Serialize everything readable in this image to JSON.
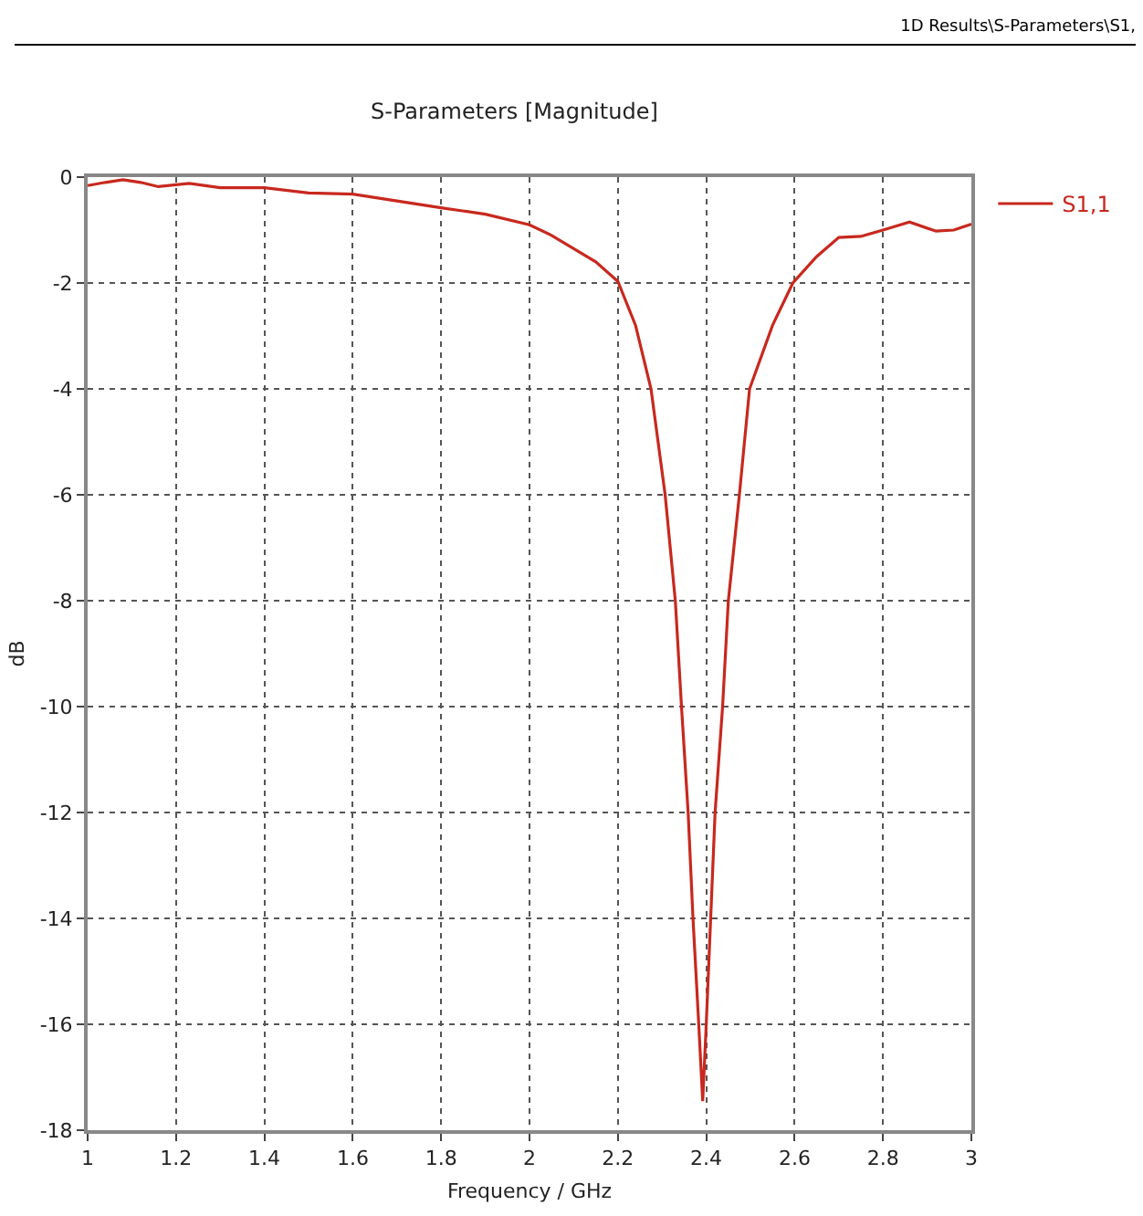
{
  "chart_data": {
    "type": "line",
    "title": "S-Parameters [Magnitude]",
    "xlabel": "Frequency / GHz",
    "ylabel": "dB",
    "annotations": [
      "1D Results\\S-Parameters\\S1,"
    ],
    "x": [
      1.0,
      1.04,
      1.08,
      1.12,
      1.16,
      1.23,
      1.3,
      1.4,
      1.5,
      1.6,
      1.7,
      1.8,
      1.9,
      2.0,
      2.05,
      2.1,
      2.15,
      2.2,
      2.24,
      2.275,
      2.307,
      2.33,
      2.344,
      2.359,
      2.37,
      2.383,
      2.392,
      2.4,
      2.41,
      2.42,
      2.437,
      2.45,
      2.475,
      2.498,
      2.55,
      2.596,
      2.65,
      2.7,
      2.75,
      2.8,
      2.86,
      2.92,
      2.96,
      3.0
    ],
    "series": [
      {
        "name": "S1,1",
        "color": "#c8281e",
        "values": [
          -0.16,
          -0.1,
          -0.05,
          -0.1,
          -0.18,
          -0.12,
          -0.2,
          -0.2,
          -0.3,
          -0.32,
          -0.45,
          -0.58,
          -0.7,
          -0.9,
          -1.1,
          -1.35,
          -1.6,
          -1.97,
          -2.8,
          -4,
          -6,
          -8,
          -10,
          -12,
          -14,
          -16,
          -17.45,
          -16,
          -14,
          -12,
          -10,
          -8,
          -6,
          -4,
          -2.8,
          -2,
          -1.5,
          -1.14,
          -1.12,
          -1.0,
          -0.85,
          -1.02,
          -1.0,
          -0.89
        ]
      }
    ],
    "xlim": [
      1,
      3
    ],
    "xticks": [
      1,
      1.2,
      1.4,
      1.6,
      1.8,
      2,
      2.2,
      2.4,
      2.6,
      2.8,
      3
    ],
    "ylim": [
      -18,
      0
    ],
    "yticks": [
      -18,
      -16,
      -14,
      -12,
      -10,
      -8,
      -6,
      -4,
      -2,
      0
    ],
    "grid": true,
    "legend": "top right",
    "marker": "none",
    "line_style": "solid"
  }
}
